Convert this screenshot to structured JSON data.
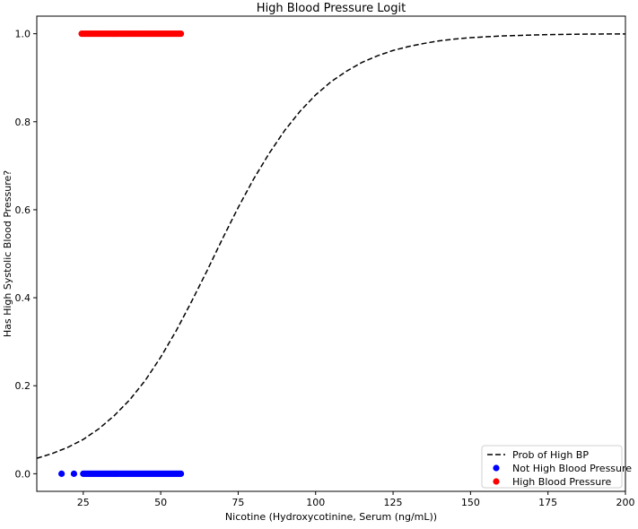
{
  "chart_data": {
    "type": "scatter",
    "title": "High Blood Pressure Logit",
    "xlabel": "Nicotine (Hydroxycotinine, Serum (ng/mL))",
    "ylabel": "Has High Systolic Blood Pressure?",
    "xlim": [
      10,
      200
    ],
    "ylim": [
      -0.04,
      1.04
    ],
    "x_ticks": [
      25,
      50,
      75,
      100,
      125,
      150,
      175,
      200
    ],
    "y_ticks": [
      0.0,
      0.2,
      0.4,
      0.6,
      0.8,
      1.0
    ],
    "x_tick_labels": [
      "25",
      "50",
      "75",
      "100",
      "125",
      "150",
      "175",
      "200"
    ],
    "y_tick_labels": [
      "0.0",
      "0.2",
      "0.4",
      "0.6",
      "0.8",
      "1.0"
    ],
    "grid": false,
    "legend_position": "bottom-right",
    "series": [
      {
        "name": "Prob of High BP",
        "kind": "line",
        "style": "dashed",
        "color": "#000000",
        "x": [
          10,
          15,
          20,
          25,
          30,
          35,
          40,
          45,
          50,
          55,
          60,
          65,
          70,
          75,
          80,
          85,
          90,
          95,
          100,
          105,
          110,
          115,
          120,
          125,
          130,
          135,
          140,
          145,
          150,
          155,
          160,
          165,
          170,
          175,
          180,
          185,
          190,
          195,
          200
        ],
        "y": [
          0.035,
          0.046,
          0.06,
          0.078,
          0.102,
          0.132,
          0.168,
          0.212,
          0.265,
          0.325,
          0.392,
          0.462,
          0.535,
          0.605,
          0.67,
          0.728,
          0.78,
          0.824,
          0.861,
          0.891,
          0.915,
          0.935,
          0.95,
          0.962,
          0.971,
          0.978,
          0.984,
          0.988,
          0.991,
          0.993,
          0.995,
          0.996,
          0.997,
          0.998,
          0.9985,
          0.999,
          0.9993,
          0.9995,
          0.9996
        ]
      },
      {
        "name": "Not High Blood Pressure",
        "kind": "scatter",
        "color": "#0000ff",
        "x": [
          18,
          22,
          25,
          25.5,
          26,
          26.5,
          27,
          27.5,
          28,
          28.5,
          29,
          29.5,
          30,
          30.5,
          31,
          31.5,
          32,
          32.5,
          33,
          33.5,
          34,
          34.5,
          35,
          35.5,
          36,
          36.5,
          37,
          37.5,
          38,
          38.5,
          39,
          39.5,
          40,
          40.5,
          41,
          41.5,
          42,
          42.5,
          43,
          43.5,
          44,
          44.5,
          45,
          45.5,
          46,
          46.5,
          47,
          47.5,
          48,
          48.5,
          49,
          49.5,
          50,
          50.5,
          51,
          51.5,
          52,
          52.5,
          53,
          53.5,
          54,
          54.5,
          55,
          55.5,
          56,
          56.5
        ],
        "y": [
          0,
          0,
          0,
          0,
          0,
          0,
          0,
          0,
          0,
          0,
          0,
          0,
          0,
          0,
          0,
          0,
          0,
          0,
          0,
          0,
          0,
          0,
          0,
          0,
          0,
          0,
          0,
          0,
          0,
          0,
          0,
          0,
          0,
          0,
          0,
          0,
          0,
          0,
          0,
          0,
          0,
          0,
          0,
          0,
          0,
          0,
          0,
          0,
          0,
          0,
          0,
          0,
          0,
          0,
          0,
          0,
          0,
          0,
          0,
          0,
          0,
          0,
          0,
          0,
          0,
          0
        ]
      },
      {
        "name": "High Blood Pressure",
        "kind": "scatter",
        "color": "#ff0000",
        "x": [
          24.5,
          25,
          25.5,
          26,
          26.5,
          27,
          27.5,
          28,
          28.5,
          29,
          29.5,
          30,
          30.5,
          31,
          31.5,
          32,
          32.5,
          33,
          33.5,
          34,
          34.5,
          35,
          35.5,
          36,
          36.5,
          37,
          37.5,
          38,
          38.5,
          39,
          39.5,
          40,
          40.5,
          41,
          41.5,
          42,
          42.5,
          43,
          43.5,
          44,
          44.5,
          45,
          45.5,
          46,
          46.5,
          47,
          47.5,
          48,
          48.5,
          49,
          49.5,
          50,
          50.5,
          51,
          51.5,
          52,
          52.5,
          53,
          53.5,
          54,
          54.5,
          55,
          55.5,
          56,
          56.5
        ],
        "y": [
          1,
          1,
          1,
          1,
          1,
          1,
          1,
          1,
          1,
          1,
          1,
          1,
          1,
          1,
          1,
          1,
          1,
          1,
          1,
          1,
          1,
          1,
          1,
          1,
          1,
          1,
          1,
          1,
          1,
          1,
          1,
          1,
          1,
          1,
          1,
          1,
          1,
          1,
          1,
          1,
          1,
          1,
          1,
          1,
          1,
          1,
          1,
          1,
          1,
          1,
          1,
          1,
          1,
          1,
          1,
          1,
          1,
          1,
          1,
          1,
          1,
          1,
          1,
          1,
          1
        ]
      }
    ]
  }
}
